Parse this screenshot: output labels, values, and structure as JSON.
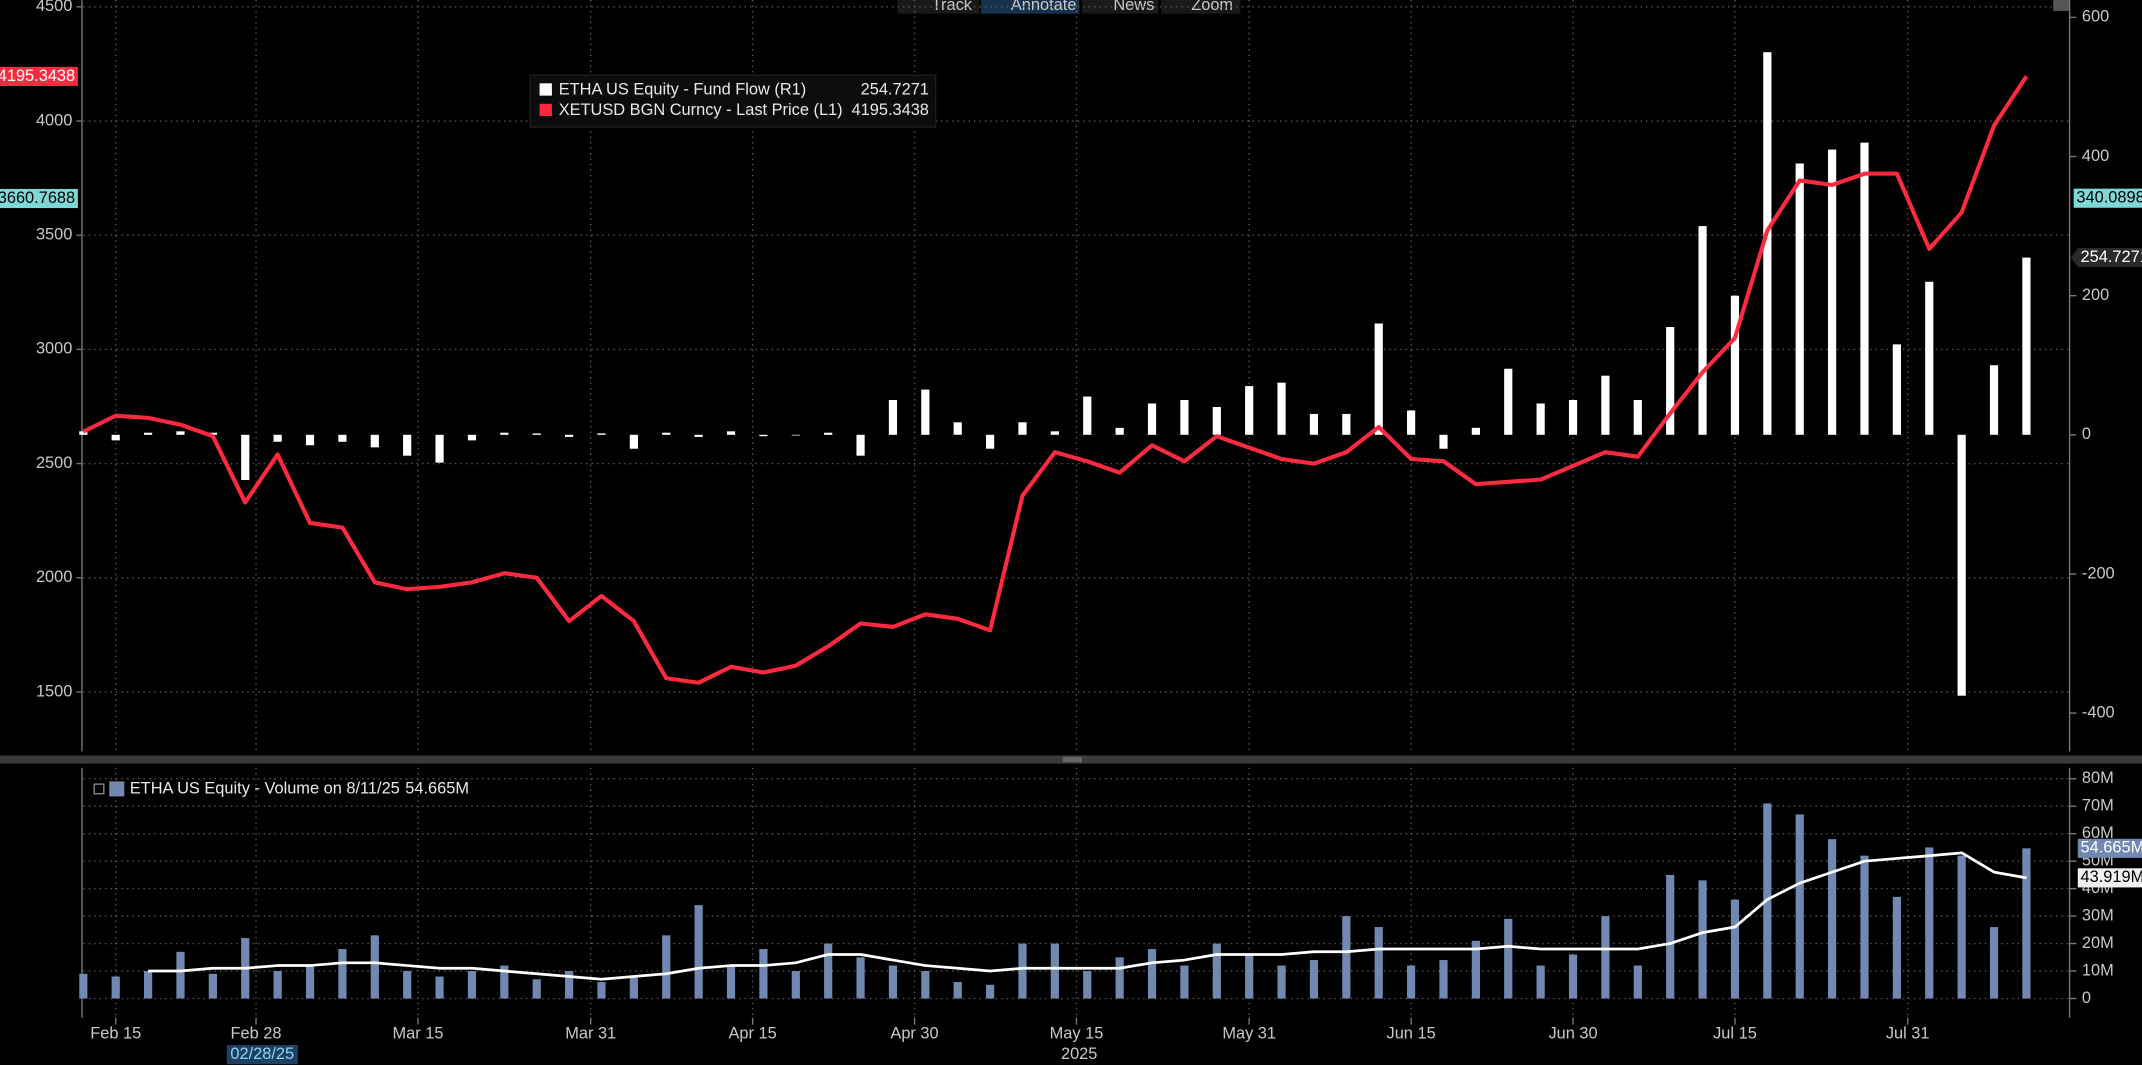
{
  "toolbar": [
    "Track",
    "Annotate",
    "News",
    "Zoom"
  ],
  "cursor_label": "02/28/25",
  "x_year_label": "2025",
  "chart_data": [
    {
      "type": "line",
      "ylim": [
        1240,
        4530
      ],
      "yticks": [
        1500,
        2000,
        2500,
        3000,
        3500,
        4000,
        4500
      ],
      "y2lim": [
        -455,
        625
      ],
      "y2ticks": [
        -400,
        -200,
        0,
        200,
        400,
        600
      ],
      "grid": true,
      "legend": "top-left",
      "markers": [
        {
          "axis": "y",
          "value": 3660.7688,
          "color": "#7fd8d8"
        },
        {
          "axis": "y2",
          "value": 340.0898,
          "color": "#7fd8d8"
        }
      ],
      "series": [
        {
          "name": "ETHA US Equity - Fund Flow (R1)",
          "type": "bar",
          "axis": "y2",
          "color": "#ffffff",
          "x": [
            "2025-02-12",
            "2025-02-15",
            "2025-02-18",
            "2025-02-21",
            "2025-02-24",
            "2025-02-27",
            "2025-03-02",
            "2025-03-05",
            "2025-03-08",
            "2025-03-11",
            "2025-03-14",
            "2025-03-17",
            "2025-03-20",
            "2025-03-23",
            "2025-03-26",
            "2025-03-29",
            "2025-04-01",
            "2025-04-04",
            "2025-04-07",
            "2025-04-10",
            "2025-04-13",
            "2025-04-16",
            "2025-04-19",
            "2025-04-22",
            "2025-04-25",
            "2025-04-28",
            "2025-05-01",
            "2025-05-04",
            "2025-05-07",
            "2025-05-10",
            "2025-05-13",
            "2025-05-16",
            "2025-05-19",
            "2025-05-22",
            "2025-05-25",
            "2025-05-28",
            "2025-05-31",
            "2025-06-03",
            "2025-06-06",
            "2025-06-09",
            "2025-06-12",
            "2025-06-15",
            "2025-06-18",
            "2025-06-21",
            "2025-06-24",
            "2025-06-27",
            "2025-06-30",
            "2025-07-03",
            "2025-07-06",
            "2025-07-09",
            "2025-07-12",
            "2025-07-15",
            "2025-07-18",
            "2025-07-21",
            "2025-07-24",
            "2025-07-27",
            "2025-07-30",
            "2025-08-02",
            "2025-08-05",
            "2025-08-08",
            "2025-08-11"
          ],
          "values": [
            5,
            -8,
            3,
            5,
            3,
            -65,
            -10,
            -15,
            -10,
            -18,
            -30,
            -40,
            -8,
            3,
            2,
            -3,
            2,
            -20,
            3,
            -3,
            5,
            -2,
            0,
            3,
            -30,
            50,
            65,
            18,
            -20,
            18,
            5,
            55,
            10,
            45,
            50,
            40,
            70,
            75,
            30,
            30,
            160,
            35,
            -20,
            10,
            95,
            45,
            50,
            85,
            50,
            155,
            300,
            200,
            550,
            390,
            410,
            420,
            130,
            220,
            -375,
            100,
            254.7271
          ]
        },
        {
          "name": "XETUSD BGN Curncy - Last Price (L1)",
          "type": "line",
          "axis": "y",
          "color": "#ff2a40",
          "x": [
            "2025-02-12",
            "2025-02-15",
            "2025-02-18",
            "2025-02-21",
            "2025-02-24",
            "2025-02-27",
            "2025-03-02",
            "2025-03-05",
            "2025-03-08",
            "2025-03-11",
            "2025-03-14",
            "2025-03-17",
            "2025-03-20",
            "2025-03-23",
            "2025-03-26",
            "2025-03-29",
            "2025-04-01",
            "2025-04-04",
            "2025-04-07",
            "2025-04-10",
            "2025-04-13",
            "2025-04-16",
            "2025-04-19",
            "2025-04-22",
            "2025-04-25",
            "2025-04-28",
            "2025-05-01",
            "2025-05-04",
            "2025-05-07",
            "2025-05-10",
            "2025-05-13",
            "2025-05-16",
            "2025-05-19",
            "2025-05-22",
            "2025-05-25",
            "2025-05-28",
            "2025-05-31",
            "2025-06-03",
            "2025-06-06",
            "2025-06-09",
            "2025-06-12",
            "2025-06-15",
            "2025-06-18",
            "2025-06-21",
            "2025-06-24",
            "2025-06-27",
            "2025-06-30",
            "2025-07-03",
            "2025-07-06",
            "2025-07-09",
            "2025-07-12",
            "2025-07-15",
            "2025-07-18",
            "2025-07-21",
            "2025-07-24",
            "2025-07-27",
            "2025-07-30",
            "2025-08-02",
            "2025-08-05",
            "2025-08-08",
            "2025-08-11"
          ],
          "values": [
            2640,
            2710,
            2700,
            2670,
            2620,
            2330,
            2540,
            2240,
            2220,
            1980,
            1950,
            1960,
            1980,
            2020,
            2000,
            1810,
            1920,
            1810,
            1560,
            1540,
            1610,
            1585,
            1615,
            1700,
            1800,
            1785,
            1840,
            1820,
            1770,
            2360,
            2550,
            2510,
            2460,
            2580,
            2510,
            2620,
            2570,
            2520,
            2500,
            2550,
            2660,
            2520,
            2510,
            2410,
            2420,
            2430,
            2490,
            2550,
            2530,
            2720,
            2900,
            3050,
            3520,
            3740,
            3720,
            3770,
            3770,
            3440,
            3600,
            3980,
            4195.3438
          ]
        }
      ]
    },
    {
      "type": "bar",
      "xlim": [
        "2025-02-12",
        "2025-08-15"
      ],
      "xticks": [
        {
          "value": "2025-02-15",
          "label": "Feb 15"
        },
        {
          "value": "2025-02-28",
          "label": "Feb 28"
        },
        {
          "value": "2025-03-15",
          "label": "Mar 15"
        },
        {
          "value": "2025-03-31",
          "label": "Mar 31"
        },
        {
          "value": "2025-04-15",
          "label": "Apr 15"
        },
        {
          "value": "2025-04-30",
          "label": "Apr 30"
        },
        {
          "value": "2025-05-15",
          "label": "May 15"
        },
        {
          "value": "2025-05-31",
          "label": "May 31"
        },
        {
          "value": "2025-06-15",
          "label": "Jun 15"
        },
        {
          "value": "2025-06-30",
          "label": "Jun 30"
        },
        {
          "value": "2025-07-15",
          "label": "Jul 15"
        },
        {
          "value": "2025-07-31",
          "label": "Jul 31"
        }
      ],
      "ylim": [
        -7000000,
        84000000
      ],
      "yticks": [
        0,
        {
          "value": 10000000,
          "label": "10M"
        },
        {
          "value": 20000000,
          "label": "20M"
        },
        {
          "value": 30000000,
          "label": "30M"
        },
        {
          "value": 40000000,
          "label": "40M"
        },
        {
          "value": 50000000,
          "label": "50M"
        },
        {
          "value": 60000000,
          "label": "60M"
        },
        {
          "value": 70000000,
          "label": "70M"
        },
        {
          "value": 80000000,
          "label": "80M"
        }
      ],
      "grid": true,
      "legend": "top-left",
      "series": [
        {
          "name": "ETHA US Equity - Volume on 8/11/25",
          "type": "bar",
          "color": "#7189b0",
          "x": [
            "2025-02-12",
            "2025-02-15",
            "2025-02-18",
            "2025-02-21",
            "2025-02-24",
            "2025-02-27",
            "2025-03-02",
            "2025-03-05",
            "2025-03-08",
            "2025-03-11",
            "2025-03-14",
            "2025-03-17",
            "2025-03-20",
            "2025-03-23",
            "2025-03-26",
            "2025-03-29",
            "2025-04-01",
            "2025-04-04",
            "2025-04-07",
            "2025-04-10",
            "2025-04-13",
            "2025-04-16",
            "2025-04-19",
            "2025-04-22",
            "2025-04-25",
            "2025-04-28",
            "2025-05-01",
            "2025-05-04",
            "2025-05-07",
            "2025-05-10",
            "2025-05-13",
            "2025-05-16",
            "2025-05-19",
            "2025-05-22",
            "2025-05-25",
            "2025-05-28",
            "2025-05-31",
            "2025-06-03",
            "2025-06-06",
            "2025-06-09",
            "2025-06-12",
            "2025-06-15",
            "2025-06-18",
            "2025-06-21",
            "2025-06-24",
            "2025-06-27",
            "2025-06-30",
            "2025-07-03",
            "2025-07-06",
            "2025-07-09",
            "2025-07-12",
            "2025-07-15",
            "2025-07-18",
            "2025-07-21",
            "2025-07-24",
            "2025-07-27",
            "2025-07-30",
            "2025-08-02",
            "2025-08-05",
            "2025-08-08",
            "2025-08-11"
          ],
          "values": [
            9000000,
            8000000,
            10000000,
            17000000,
            9000000,
            22000000,
            10000000,
            12000000,
            18000000,
            23000000,
            10000000,
            8000000,
            10000000,
            12000000,
            7000000,
            10000000,
            6000000,
            8000000,
            23000000,
            34000000,
            12000000,
            18000000,
            10000000,
            20000000,
            15000000,
            12000000,
            10000000,
            6000000,
            5000000,
            20000000,
            20000000,
            10000000,
            15000000,
            18000000,
            12000000,
            20000000,
            16000000,
            12000000,
            14000000,
            30000000,
            26000000,
            12000000,
            14000000,
            21000000,
            29000000,
            12000000,
            16000000,
            30000000,
            12000000,
            45000000,
            43000000,
            36000000,
            71000000,
            67000000,
            58000000,
            52000000,
            37000000,
            55000000,
            52000000,
            26000000,
            54665000
          ],
          "value_labels": {
            "60": "54.665M"
          }
        },
        {
          "type": "line",
          "color": "#ffffff",
          "x": [
            "2025-02-12",
            "2025-02-15",
            "2025-02-18",
            "2025-02-21",
            "2025-02-24",
            "2025-02-27",
            "2025-03-02",
            "2025-03-05",
            "2025-03-08",
            "2025-03-11",
            "2025-03-14",
            "2025-03-17",
            "2025-03-20",
            "2025-03-23",
            "2025-03-26",
            "2025-03-29",
            "2025-04-01",
            "2025-04-04",
            "2025-04-07",
            "2025-04-10",
            "2025-04-13",
            "2025-04-16",
            "2025-04-19",
            "2025-04-22",
            "2025-04-25",
            "2025-04-28",
            "2025-05-01",
            "2025-05-04",
            "2025-05-07",
            "2025-05-10",
            "2025-05-13",
            "2025-05-16",
            "2025-05-19",
            "2025-05-22",
            "2025-05-25",
            "2025-05-28",
            "2025-05-31",
            "2025-06-03",
            "2025-06-06",
            "2025-06-09",
            "2025-06-12",
            "2025-06-15",
            "2025-06-18",
            "2025-06-21",
            "2025-06-24",
            "2025-06-27",
            "2025-06-30",
            "2025-07-03",
            "2025-07-06",
            "2025-07-09",
            "2025-07-12",
            "2025-07-15",
            "2025-07-18",
            "2025-07-21",
            "2025-07-24",
            "2025-07-27",
            "2025-07-30",
            "2025-08-02",
            "2025-08-05",
            "2025-08-08",
            "2025-08-11"
          ],
          "values": [
            null,
            null,
            10000000,
            10000000,
            11000000,
            11000000,
            12000000,
            12000000,
            13000000,
            13000000,
            12000000,
            11000000,
            11000000,
            10000000,
            9000000,
            8000000,
            7000000,
            8000000,
            9000000,
            11000000,
            12000000,
            12000000,
            13000000,
            16000000,
            16000000,
            14000000,
            12000000,
            11000000,
            10000000,
            11000000,
            11000000,
            11000000,
            11000000,
            13000000,
            14000000,
            16000000,
            16000000,
            16000000,
            17000000,
            17000000,
            18000000,
            18000000,
            18000000,
            18000000,
            19000000,
            18000000,
            18000000,
            18000000,
            18000000,
            20000000,
            24000000,
            26000000,
            36000000,
            42000000,
            46000000,
            50000000,
            51000000,
            52000000,
            53000000,
            46000000,
            43919000
          ],
          "value_labels": {
            "60": "43.919M"
          }
        }
      ]
    }
  ]
}
